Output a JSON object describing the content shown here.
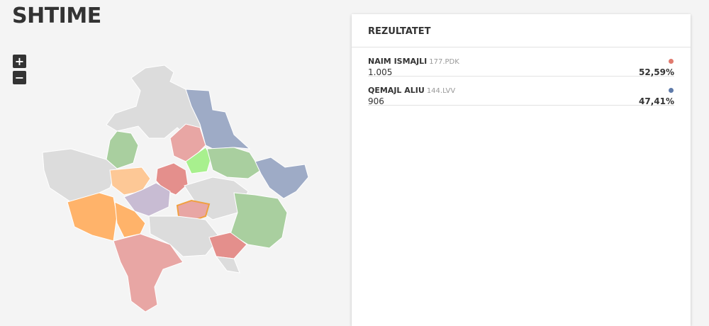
{
  "header": {
    "title": "SHTIME"
  },
  "zoom": {
    "in": "+",
    "out": "−"
  },
  "results": {
    "title": "REZULTATET",
    "candidates": [
      {
        "name": "NAIM ISMAJLI",
        "code": "177.PDK",
        "votes": "1.005",
        "percent": "52,59%",
        "color": "#e07a6e"
      },
      {
        "name": "QEMAJL ALIU",
        "code": "144.LVV",
        "votes": "906",
        "percent": "47,41%",
        "color": "#5f7baa"
      }
    ]
  }
}
